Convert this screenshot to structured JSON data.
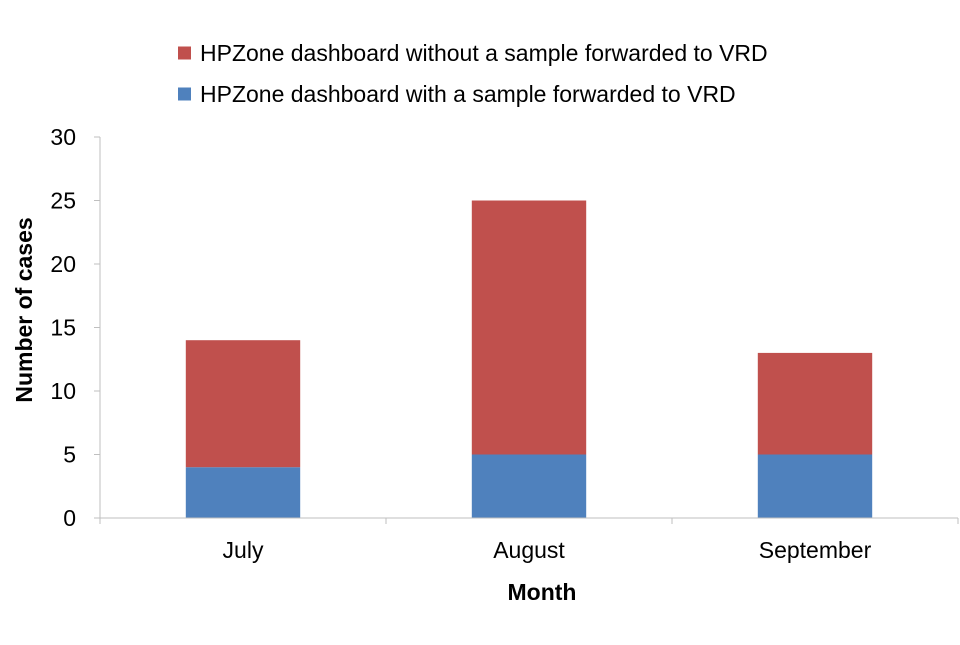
{
  "chart_data": {
    "type": "bar",
    "stacked": true,
    "title": "",
    "xlabel": "Month",
    "ylabel": "Number of cases",
    "ylim": [
      0,
      30
    ],
    "yticks": [
      0,
      5,
      10,
      15,
      20,
      25,
      30
    ],
    "categories": [
      "July",
      "August",
      "September"
    ],
    "series": [
      {
        "name": "HPZone dashboard with a sample forwarded to VRD",
        "color": "#4F81BD",
        "values": [
          4,
          5,
          5
        ]
      },
      {
        "name": "HPZone dashboard without a sample forwarded to VRD",
        "color": "#C0504D",
        "values": [
          10,
          20,
          8
        ]
      }
    ],
    "legend_order": [
      1,
      0
    ],
    "legend_position": "top",
    "grid": false
  }
}
